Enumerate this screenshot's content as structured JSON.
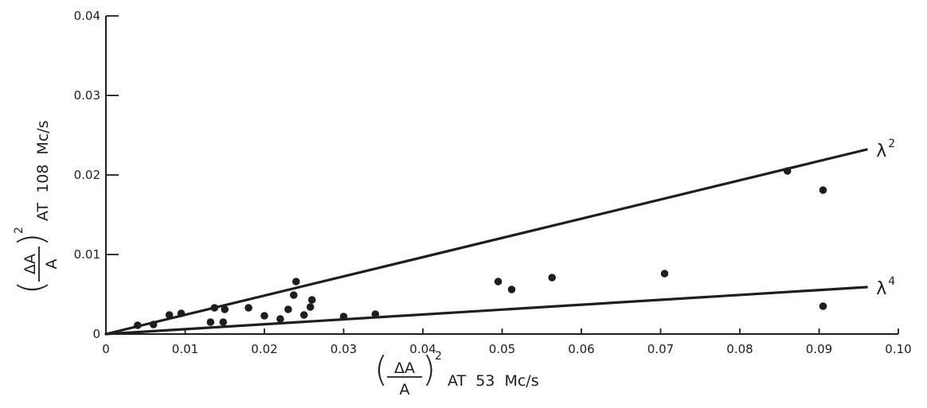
{
  "chart_data": {
    "type": "scatter",
    "title": "",
    "xlabel": {
      "numerator": "ΔA",
      "denominator": "A",
      "exponent": "2",
      "suffix": "AT  53  Mc/s"
    },
    "ylabel": {
      "numerator": "ΔA",
      "denominator": "A",
      "exponent": "2",
      "suffix": "AT  108  Mc/s"
    },
    "xlim": [
      0,
      0.1
    ],
    "ylim": [
      0,
      0.04
    ],
    "x_ticks": [
      {
        "value": 0,
        "label": "0"
      },
      {
        "value": 0.01,
        "label": "0.01"
      },
      {
        "value": 0.02,
        "label": "0.02"
      },
      {
        "value": 0.03,
        "label": "0.03"
      },
      {
        "value": 0.04,
        "label": "0.04"
      },
      {
        "value": 0.05,
        "label": "0.05"
      },
      {
        "value": 0.06,
        "label": "0.06"
      },
      {
        "value": 0.07,
        "label": "0.07"
      },
      {
        "value": 0.08,
        "label": "0.08"
      },
      {
        "value": 0.09,
        "label": "0.09"
      },
      {
        "value": 0.1,
        "label": "0.10"
      }
    ],
    "y_ticks": [
      {
        "value": 0,
        "label": "0"
      },
      {
        "value": 0.01,
        "label": "0.01"
      },
      {
        "value": 0.02,
        "label": "0.02"
      },
      {
        "value": 0.03,
        "label": "0.03"
      },
      {
        "value": 0.04,
        "label": "0.04"
      }
    ],
    "grid": false,
    "lines": [
      {
        "label_base": "λ",
        "label_exp": "2",
        "x": [
          0,
          0.096
        ],
        "y": [
          0,
          0.0232
        ]
      },
      {
        "label_base": "λ",
        "label_exp": "4",
        "x": [
          0,
          0.096
        ],
        "y": [
          0,
          0.0059
        ]
      }
    ],
    "points": [
      {
        "x": 0.004,
        "y": 0.0011
      },
      {
        "x": 0.006,
        "y": 0.0012
      },
      {
        "x": 0.008,
        "y": 0.0024
      },
      {
        "x": 0.0095,
        "y": 0.0026
      },
      {
        "x": 0.0132,
        "y": 0.0015
      },
      {
        "x": 0.0137,
        "y": 0.0033
      },
      {
        "x": 0.0148,
        "y": 0.0015
      },
      {
        "x": 0.015,
        "y": 0.0031
      },
      {
        "x": 0.018,
        "y": 0.0033
      },
      {
        "x": 0.02,
        "y": 0.0023
      },
      {
        "x": 0.022,
        "y": 0.0019
      },
      {
        "x": 0.023,
        "y": 0.0031
      },
      {
        "x": 0.0237,
        "y": 0.0049
      },
      {
        "x": 0.024,
        "y": 0.0066
      },
      {
        "x": 0.025,
        "y": 0.0024
      },
      {
        "x": 0.0258,
        "y": 0.0034
      },
      {
        "x": 0.026,
        "y": 0.0043
      },
      {
        "x": 0.03,
        "y": 0.0022
      },
      {
        "x": 0.034,
        "y": 0.0025
      },
      {
        "x": 0.0495,
        "y": 0.0066
      },
      {
        "x": 0.0512,
        "y": 0.0056
      },
      {
        "x": 0.0563,
        "y": 0.0071
      },
      {
        "x": 0.0705,
        "y": 0.0076
      },
      {
        "x": 0.086,
        "y": 0.0205
      },
      {
        "x": 0.0905,
        "y": 0.0181
      },
      {
        "x": 0.0905,
        "y": 0.0035
      }
    ]
  }
}
